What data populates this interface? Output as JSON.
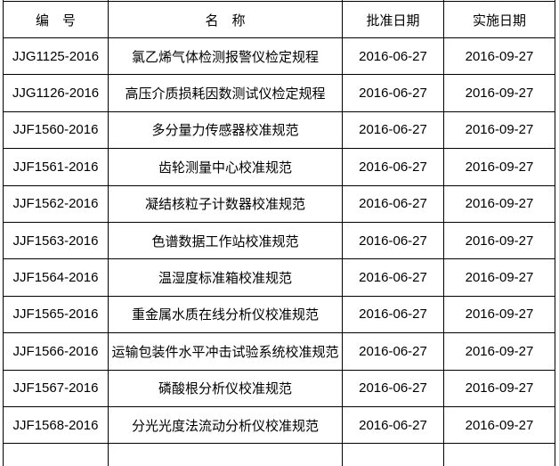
{
  "table": {
    "columns": [
      {
        "key": "code",
        "label": "编　号"
      },
      {
        "key": "name",
        "label": "名　称"
      },
      {
        "key": "approval_date",
        "label": "批准日期"
      },
      {
        "key": "implementation_date",
        "label": "实施日期"
      }
    ],
    "rows": [
      {
        "code": "JJG1125-2016",
        "name": "氯乙烯气体检测报警仪检定规程",
        "approval_date": "2016-06-27",
        "implementation_date": "2016-09-27"
      },
      {
        "code": "JJG1126-2016",
        "name": "高压介质损耗因数测试仪检定规程",
        "approval_date": "2016-06-27",
        "implementation_date": "2016-09-27"
      },
      {
        "code": "JJF1560-2016",
        "name": "多分量力传感器校准规范",
        "approval_date": "2016-06-27",
        "implementation_date": "2016-09-27"
      },
      {
        "code": "JJF1561-2016",
        "name": "齿轮测量中心校准规范",
        "approval_date": "2016-06-27",
        "implementation_date": "2016-09-27"
      },
      {
        "code": "JJF1562-2016",
        "name": "凝结核粒子计数器校准规范",
        "approval_date": "2016-06-27",
        "implementation_date": "2016-09-27"
      },
      {
        "code": "JJF1563-2016",
        "name": "色谱数据工作站校准规范",
        "approval_date": "2016-06-27",
        "implementation_date": "2016-09-27"
      },
      {
        "code": "JJF1564-2016",
        "name": "温湿度标准箱校准规范",
        "approval_date": "2016-06-27",
        "implementation_date": "2016-09-27"
      },
      {
        "code": "JJF1565-2016",
        "name": "重金属水质在线分析仪校准规范",
        "approval_date": "2016-06-27",
        "implementation_date": "2016-09-27"
      },
      {
        "code": "JJF1566-2016",
        "name": "运输包装件水平冲击试验系统校准规范",
        "approval_date": "2016-06-27",
        "implementation_date": "2016-09-27"
      },
      {
        "code": "JJF1567-2016",
        "name": "磷酸根分析仪校准规范",
        "approval_date": "2016-06-27",
        "implementation_date": "2016-09-27"
      },
      {
        "code": "JJF1568-2016",
        "name": "分光光度法流动分析仪校准规范",
        "approval_date": "2016-06-27",
        "implementation_date": "2016-09-27"
      }
    ],
    "border_color": "#000000",
    "text_color": "#000000",
    "background_color": "#ffffff"
  }
}
